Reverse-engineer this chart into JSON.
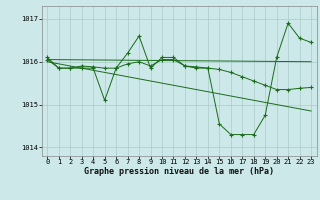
{
  "title": "Graphe pression niveau de la mer (hPa)",
  "bg_color": "#cce8e8",
  "grid_color": "#aacccc",
  "line_color": "#1a6b1a",
  "xlim": [
    -0.5,
    23.5
  ],
  "ylim": [
    1013.8,
    1017.3
  ],
  "yticks": [
    1014,
    1015,
    1016,
    1017
  ],
  "ytick_labels": [
    "1014",
    "1015",
    "1016",
    "1017"
  ],
  "xticks": [
    0,
    1,
    2,
    3,
    4,
    5,
    6,
    7,
    8,
    9,
    10,
    11,
    12,
    13,
    14,
    15,
    16,
    17,
    18,
    19,
    20,
    21,
    22,
    23
  ],
  "series1_x": [
    0,
    1,
    2,
    3,
    4,
    5,
    6,
    7,
    8,
    9,
    10,
    11,
    12,
    13,
    14,
    15,
    16,
    17,
    18,
    19,
    20,
    21,
    22,
    23
  ],
  "series1_y": [
    1016.1,
    1015.85,
    1015.85,
    1015.85,
    1015.85,
    1015.1,
    1015.85,
    1016.2,
    1016.6,
    1015.85,
    1016.1,
    1016.1,
    1015.9,
    1015.85,
    1015.85,
    1014.55,
    1014.3,
    1014.3,
    1014.3,
    1014.75,
    1016.1,
    1016.9,
    1016.55,
    1016.45
  ],
  "series2_x": [
    0,
    1,
    2,
    3,
    4,
    5,
    6,
    7,
    8,
    9,
    10,
    11,
    12,
    13,
    14,
    15,
    16,
    17,
    18,
    19,
    20,
    21,
    22,
    23
  ],
  "series2_y": [
    1016.05,
    1015.85,
    1015.85,
    1015.9,
    1015.88,
    1015.85,
    1015.85,
    1015.95,
    1016.0,
    1015.9,
    1016.05,
    1016.05,
    1015.9,
    1015.88,
    1015.85,
    1015.82,
    1015.75,
    1015.65,
    1015.55,
    1015.45,
    1015.35,
    1015.35,
    1015.38,
    1015.4
  ],
  "trend1_x": [
    0,
    23
  ],
  "trend1_y": [
    1016.05,
    1016.0
  ],
  "trend2_x": [
    0,
    23
  ],
  "trend2_y": [
    1016.0,
    1014.85
  ],
  "xlabel_fontsize": 6,
  "tick_fontsize": 5
}
